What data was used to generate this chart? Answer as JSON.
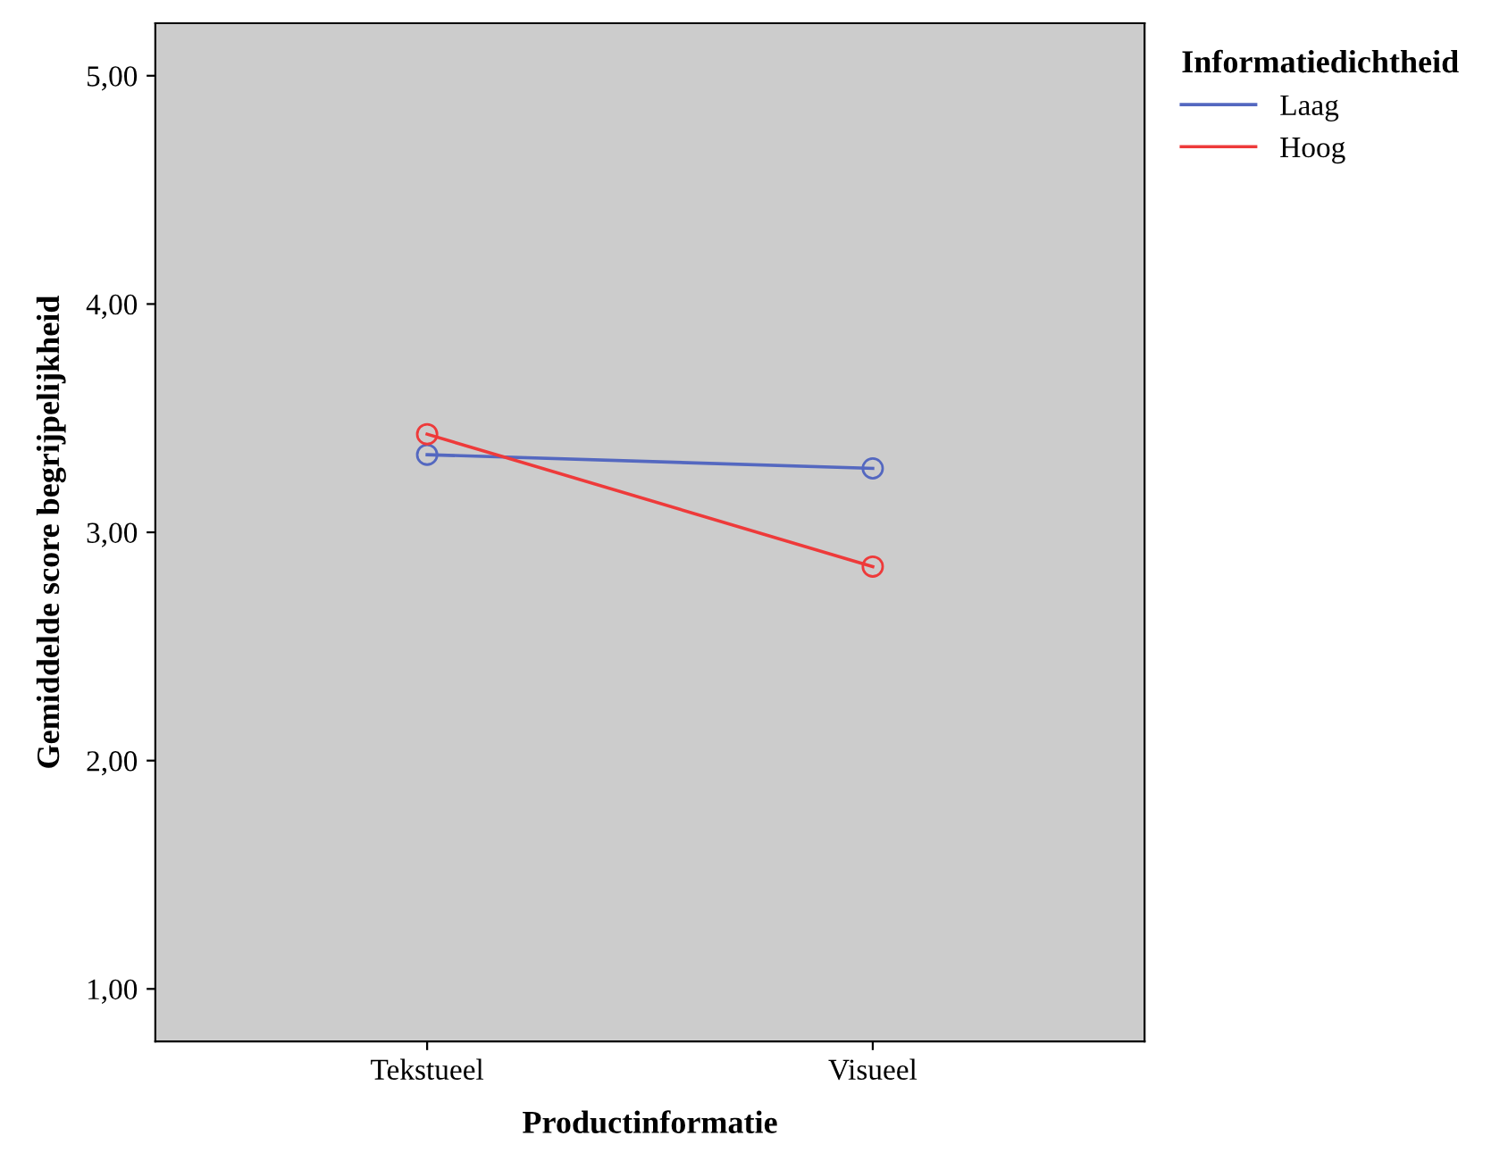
{
  "chart_data": {
    "type": "line",
    "xlabel": "Productinformatie",
    "ylabel": "Gemiddelde score begrijpelijkheid",
    "legend_title": "Informatiedichtheid",
    "categories": [
      "Tekstueel",
      "Visueel"
    ],
    "series": [
      {
        "name": "Laag",
        "color": "#5468c0",
        "values": [
          3.34,
          3.28
        ]
      },
      {
        "name": "Hoog",
        "color": "#ee3a3a",
        "values": [
          3.43,
          2.85
        ]
      }
    ],
    "ylim": [
      0.77,
      5.23
    ],
    "yticks": [
      {
        "value": 1,
        "label": "1,00"
      },
      {
        "value": 2,
        "label": "2,00"
      },
      {
        "value": 3,
        "label": "3,00"
      },
      {
        "value": 4,
        "label": "4,00"
      },
      {
        "value": 5,
        "label": "5,00"
      }
    ],
    "marker": "circle",
    "line_style": "solid",
    "legend": "top right",
    "grid": false
  }
}
